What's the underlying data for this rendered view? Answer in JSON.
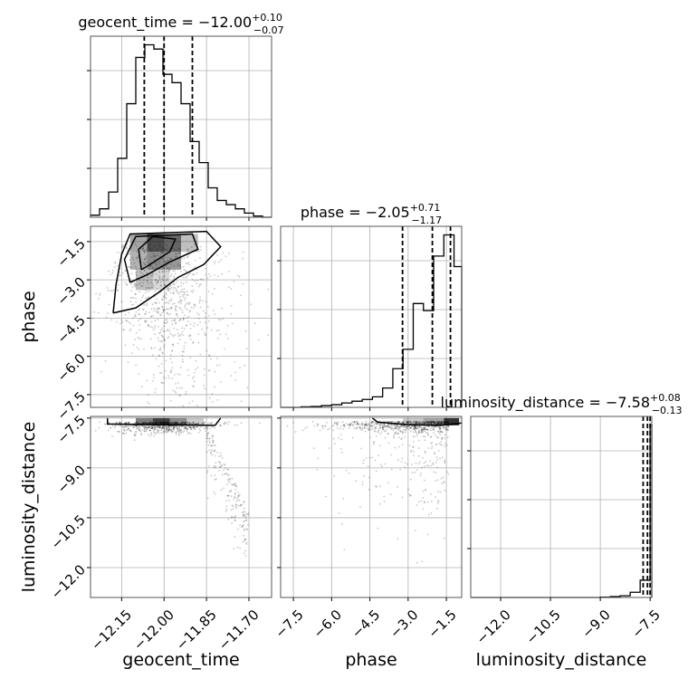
{
  "chart_data": {
    "type": "scatter",
    "kind": "corner-plot",
    "parameters": [
      "geocent_time",
      "phase",
      "luminosity_distance"
    ],
    "titles": {
      "geocent_time": {
        "prefix": "geocent_time = ",
        "median": "−12.00",
        "plus": "+0.10",
        "minus": "−0.07"
      },
      "phase": {
        "prefix": "phase = ",
        "median": "−2.05",
        "plus": "+0.71",
        "minus": "−1.17"
      },
      "luminosity_distance": {
        "prefix": "luminosity_distance = ",
        "median": "−7.58",
        "plus": "+0.08",
        "minus": "−0.13"
      }
    },
    "axis_labels": {
      "geocent_time": "geocent_time",
      "phase": "phase",
      "luminosity_distance": "luminosity_distance"
    },
    "ranges": {
      "geocent_time": [
        -12.26,
        -11.62
      ],
      "phase": [
        -8.0,
        -0.9
      ],
      "luminosity_distance": [
        -12.9,
        -7.45
      ]
    },
    "ticks": {
      "geocent_time": {
        "values": [
          -12.15,
          -12.0,
          -11.85,
          -11.7
        ],
        "labels": [
          "−12.15",
          "−12.00",
          "−11.85",
          "−11.70"
        ]
      },
      "phase": {
        "values": [
          -7.5,
          -6.0,
          -4.5,
          -3.0,
          -1.5
        ],
        "labels": [
          "−7.5",
          "−6.0",
          "−4.5",
          "−3.0",
          "−1.5"
        ]
      },
      "luminosity_distance": {
        "values": [
          -12.0,
          -10.5,
          -9.0,
          -7.5
        ],
        "labels": [
          "−12.0",
          "−10.5",
          "−9.0",
          "−7.5"
        ]
      }
    },
    "quantiles": {
      "geocent_time": [
        -12.07,
        -12.0,
        -11.9
      ],
      "phase": [
        -3.22,
        -2.05,
        -1.34
      ],
      "luminosity_distance": [
        -7.71,
        -7.58,
        -7.5
      ]
    },
    "histograms": {
      "geocent_time": {
        "edges": [
          -12.26,
          -12.228,
          -12.196,
          -12.164,
          -12.132,
          -12.1,
          -12.068,
          -12.036,
          -12.004,
          -11.972,
          -11.94,
          -11.908,
          -11.876,
          -11.844,
          -11.812,
          -11.78,
          -11.748,
          -11.716,
          -11.684,
          -11.652,
          -11.62
        ],
        "counts": [
          0.5,
          2,
          6,
          14,
          27,
          38,
          41,
          40,
          34,
          32,
          27,
          18,
          13,
          7,
          4,
          3,
          2,
          1,
          0.3,
          0
        ]
      },
      "phase": {
        "edges": [
          -8.0,
          -7.6,
          -7.2,
          -6.8,
          -6.4,
          -6.0,
          -5.6,
          -5.2,
          -4.8,
          -4.4,
          -4.0,
          -3.6,
          -3.2,
          -2.8,
          -2.4,
          -2.0,
          -1.6,
          -1.2,
          -0.9
        ],
        "counts": [
          0,
          0,
          0.3,
          0.5,
          1,
          1.5,
          2.5,
          3.5,
          4.5,
          6,
          11,
          22,
          33,
          59,
          55,
          86,
          98,
          80
        ]
      },
      "luminosity_distance": {
        "edges": [
          -12.9,
          -12.6,
          -12.3,
          -12.0,
          -11.7,
          -11.4,
          -11.1,
          -10.8,
          -10.5,
          -10.2,
          -9.9,
          -9.6,
          -9.3,
          -9.0,
          -8.7,
          -8.4,
          -8.1,
          -7.8,
          -7.5,
          -7.45
        ],
        "counts": [
          0,
          0,
          0,
          0,
          0,
          0,
          0,
          0,
          0,
          0,
          0,
          0,
          0,
          0.2,
          0.5,
          1,
          3,
          10,
          100
        ]
      }
    },
    "grid": true,
    "series": [
      {
        "x": "geocent_time",
        "y": "phase"
      },
      {
        "x": "geocent_time",
        "y": "luminosity_distance"
      },
      {
        "x": "phase",
        "y": "luminosity_distance"
      }
    ],
    "colors": {
      "ink": "#000000",
      "grid": "#b0b0b0",
      "points": "#000000"
    }
  }
}
